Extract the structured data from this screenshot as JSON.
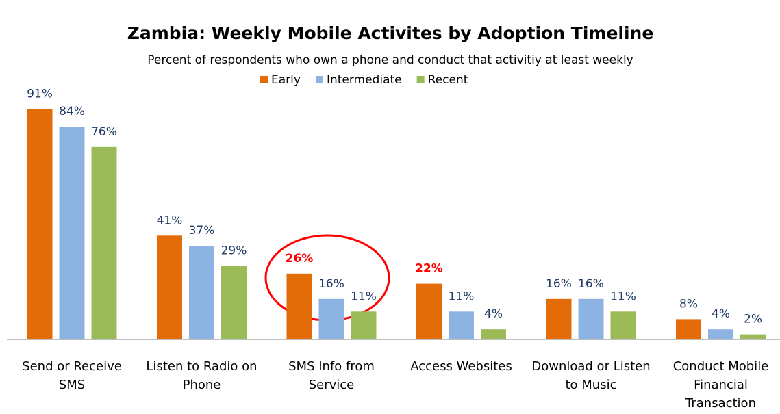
{
  "chart_data": {
    "type": "bar",
    "title": "Zambia: Weekly Mobile Activites by Adoption Timeline",
    "subtitle": "Percent of respondents who own a phone and conduct that activitiy at least weekly",
    "categories": [
      "Send or Receive SMS",
      "Listen to Radio on Phone",
      "SMS Info from Service",
      "Access Websites",
      "Download or Listen to Music",
      "Conduct Mobile Financial Transaction"
    ],
    "series": [
      {
        "name": "Early",
        "color": "#e36c09",
        "values": [
          91,
          41,
          26,
          22,
          16,
          8
        ],
        "value_labels": [
          "91%",
          "41%",
          "26%",
          "22%",
          "16%",
          "8%"
        ]
      },
      {
        "name": "Intermediate",
        "color": "#8db3e2",
        "values": [
          84,
          37,
          16,
          11,
          16,
          4
        ],
        "value_labels": [
          "84%",
          "37%",
          "16%",
          "11%",
          "16%",
          "4%"
        ]
      },
      {
        "name": "Recent",
        "color": "#9bbb59",
        "values": [
          76,
          29,
          11,
          4,
          11,
          2
        ],
        "value_labels": [
          "76%",
          "29%",
          "11%",
          "4%",
          "11%",
          "2%"
        ]
      }
    ],
    "label_color": "#1f3864",
    "highlight": {
      "color": "#ff0000",
      "series": 0,
      "indices": [
        2,
        3
      ]
    },
    "legend": "top"
  }
}
